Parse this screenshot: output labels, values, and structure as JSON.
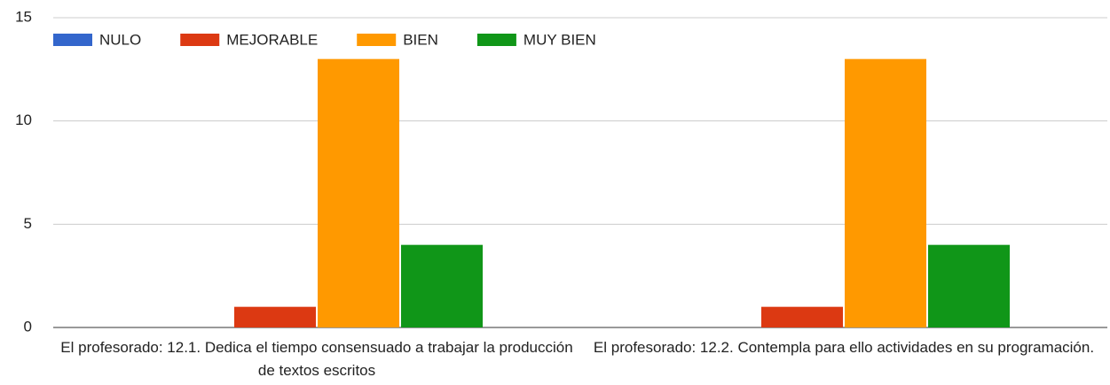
{
  "chart_data": {
    "type": "bar",
    "categories": [
      "El profesorado: 12.1. Dedica el tiempo consensuado a trabajar la producción de textos escritos",
      "El profesorado: 12.2. Contempla para ello actividades en su programación."
    ],
    "series": [
      {
        "name": "NULO",
        "color": "#3366cc",
        "values": [
          0,
          0
        ]
      },
      {
        "name": "MEJORABLE",
        "color": "#dc3912",
        "values": [
          1,
          1
        ]
      },
      {
        "name": "BIEN",
        "color": "#ff9900",
        "values": [
          13,
          13
        ]
      },
      {
        "name": "MUY BIEN",
        "color": "#109618",
        "values": [
          4,
          4
        ]
      }
    ],
    "ylim": [
      0,
      15
    ],
    "yticks": [
      0,
      5,
      10,
      15
    ],
    "grid": true,
    "legend": "top"
  }
}
